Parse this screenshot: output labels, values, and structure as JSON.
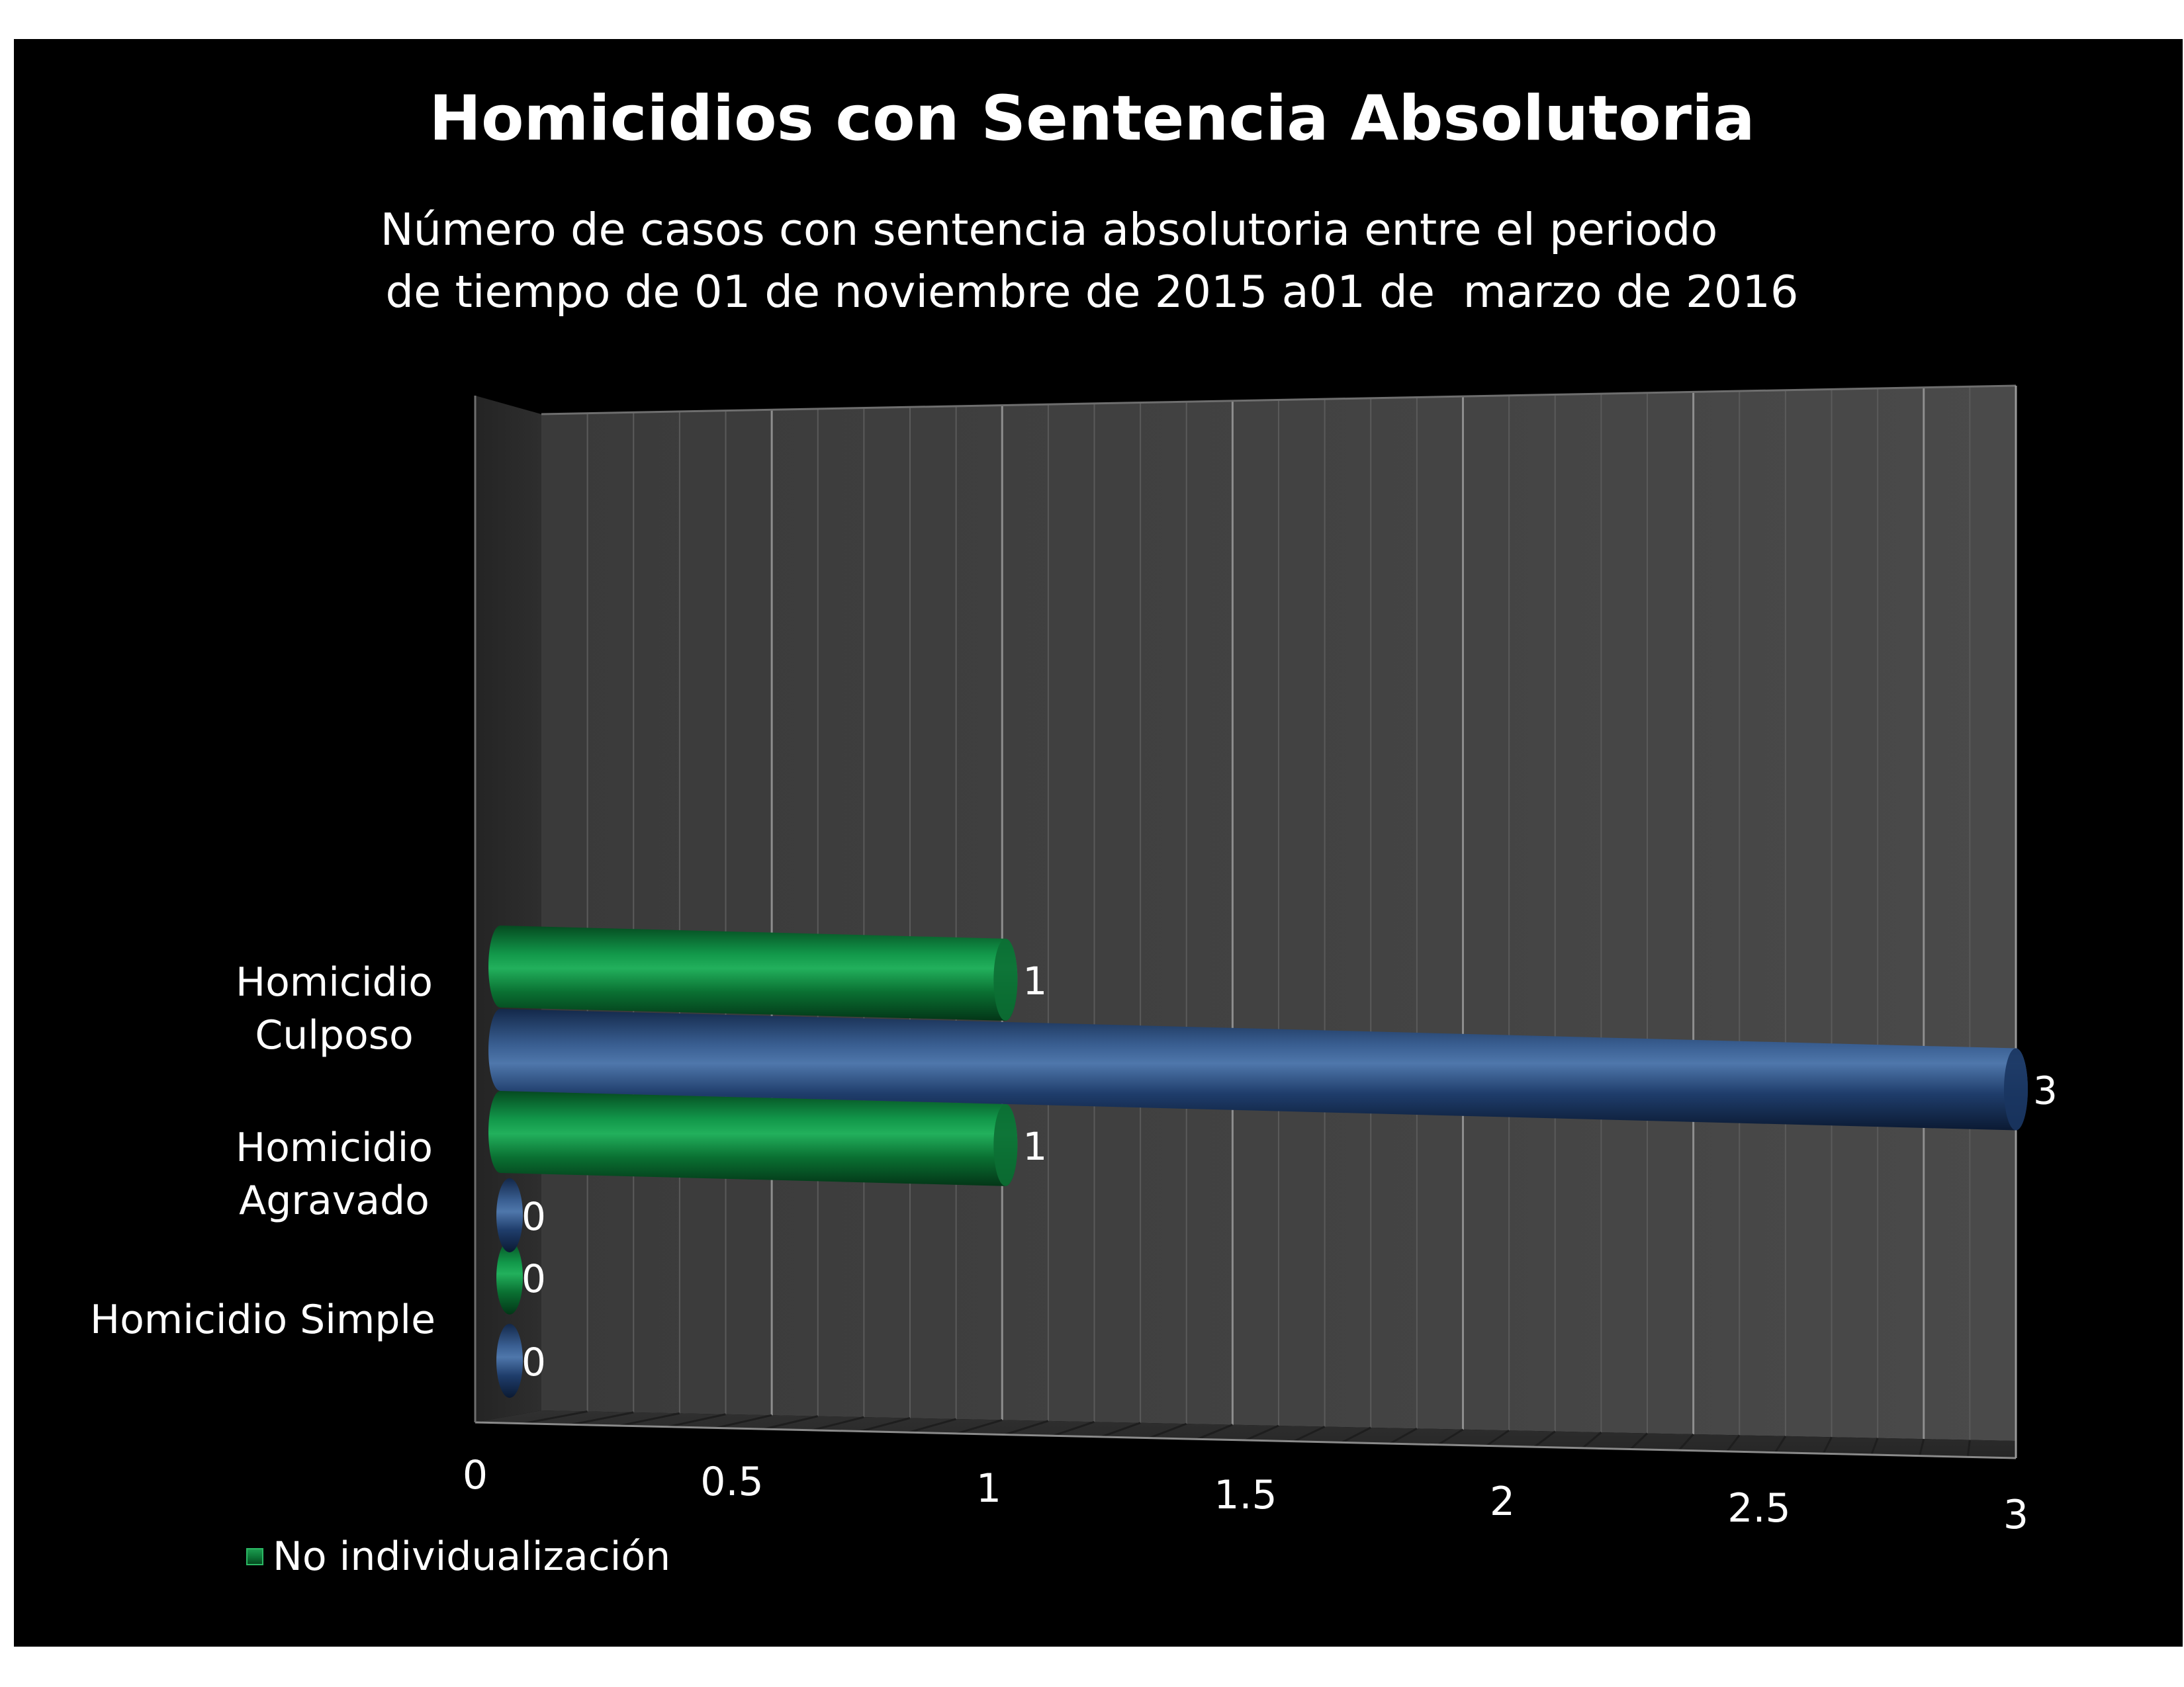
{
  "chart_data": {
    "type": "bar",
    "orientation": "horizontal",
    "title": "Homicidios con Sentencia Absolutoria",
    "subtitle_lines": [
      "Número de casos con sentencia absolutoria entre el periodo",
      "de tiempo de 01 de noviembre de 2015 a01 de  marzo de 2016"
    ],
    "categories": [
      {
        "label_lines": [
          "Homicidio Simple"
        ]
      },
      {
        "label_lines": [
          "Homicidio",
          "Agravado"
        ]
      },
      {
        "label_lines": [
          "Homicidio",
          "Culposo"
        ]
      }
    ],
    "series": [
      {
        "name": "",
        "color": "#1e3a6a",
        "values": [
          0,
          0,
          3
        ]
      },
      {
        "name": "No individualización",
        "color": "#0d7a3a",
        "values": [
          0,
          1,
          1
        ]
      }
    ],
    "data_labels": true,
    "xlim": [
      0,
      3
    ],
    "x_ticks": [
      "0",
      "0.5",
      "1",
      "1.5",
      "2",
      "2.5",
      "3"
    ],
    "grid": true,
    "style": "3d-cylinder",
    "legend": {
      "position": "bottom-left",
      "entries": [
        "No individualización"
      ]
    }
  }
}
